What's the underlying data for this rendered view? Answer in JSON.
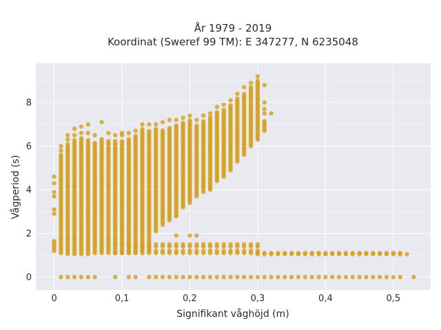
{
  "chart_data": {
    "type": "scatter",
    "title_line1": "År 1979 - 2019",
    "title_line2": "Koordinat (Sweref 99 TM): E 347277, N 6235048",
    "xlabel": "Signifikant våghöjd (m)",
    "ylabel": "Vågperiod (s)",
    "xlim": [
      -0.027,
      0.555
    ],
    "ylim": [
      -0.6,
      9.8
    ],
    "x_ticks": [
      {
        "value": 0,
        "label": "0"
      },
      {
        "value": 0.1,
        "label": "0,1"
      },
      {
        "value": 0.2,
        "label": "0,2"
      },
      {
        "value": 0.3,
        "label": "0,3"
      },
      {
        "value": 0.4,
        "label": "0,4"
      },
      {
        "value": 0.5,
        "label": "0,5"
      }
    ],
    "y_ticks": [
      {
        "value": 0,
        "label": "0"
      },
      {
        "value": 2,
        "label": "2"
      },
      {
        "value": 4,
        "label": "4"
      },
      {
        "value": 6,
        "label": "6"
      },
      {
        "value": 8,
        "label": "8"
      }
    ],
    "grid": true,
    "background": "#e9e9f0",
    "point_color": "#d4a11f",
    "x_step": 0.01,
    "main_band": [
      {
        "x": 0.0,
        "ymin": 1.2,
        "ymax": 1.7,
        "extra": [
          2.9,
          3.1,
          3.7,
          3.9,
          4.3,
          4.6
        ]
      },
      {
        "x": 0.01,
        "ymin": 1.1,
        "ymax": 5.6,
        "extra": [
          5.8,
          6.0
        ]
      },
      {
        "x": 0.02,
        "ymin": 1.05,
        "ymax": 6.1,
        "extra": [
          6.3,
          6.5
        ]
      },
      {
        "x": 0.03,
        "ymin": 1.05,
        "ymax": 6.3,
        "extra": [
          6.5,
          6.8
        ]
      },
      {
        "x": 0.04,
        "ymin": 1.05,
        "ymax": 6.4,
        "extra": [
          6.6,
          6.9
        ]
      },
      {
        "x": 0.05,
        "ymin": 1.05,
        "ymax": 6.3,
        "extra": [
          6.6,
          7.0
        ]
      },
      {
        "x": 0.06,
        "ymin": 1.1,
        "ymax": 6.2,
        "extra": [
          6.5
        ]
      },
      {
        "x": 0.07,
        "ymin": 1.1,
        "ymax": 6.4,
        "extra": [
          7.1
        ]
      },
      {
        "x": 0.08,
        "ymin": 1.1,
        "ymax": 6.3,
        "extra": [
          6.6
        ]
      },
      {
        "x": 0.09,
        "ymin": 1.1,
        "ymax": 6.3,
        "extra": [
          6.5
        ]
      },
      {
        "x": 0.1,
        "ymin": 1.1,
        "ymax": 6.3,
        "extra": [
          6.5,
          6.6
        ]
      },
      {
        "x": 0.11,
        "ymin": 1.1,
        "ymax": 6.4,
        "extra": [
          6.6
        ]
      },
      {
        "x": 0.12,
        "ymin": 1.15,
        "ymax": 6.5,
        "extra": [
          6.7
        ]
      },
      {
        "x": 0.13,
        "ymin": 1.2,
        "ymax": 6.8,
        "extra": [
          7.0
        ]
      },
      {
        "x": 0.14,
        "ymin": 1.2,
        "ymax": 6.7,
        "extra": [
          7.0
        ]
      },
      {
        "x": 0.15,
        "ymin": 2.1,
        "ymax": 6.8,
        "extra": [
          7.0
        ]
      },
      {
        "x": 0.16,
        "ymin": 2.4,
        "ymax": 6.8,
        "extra": [
          7.1
        ]
      },
      {
        "x": 0.17,
        "ymin": 2.6,
        "ymax": 6.9,
        "extra": [
          7.2
        ]
      },
      {
        "x": 0.18,
        "ymin": 2.8,
        "ymax": 7.0,
        "extra": [
          7.2,
          2.8
        ]
      },
      {
        "x": 0.19,
        "ymin": 3.2,
        "ymax": 7.1,
        "extra": [
          7.3
        ]
      },
      {
        "x": 0.2,
        "ymin": 3.4,
        "ymax": 7.2,
        "extra": [
          7.4
        ]
      },
      {
        "x": 0.21,
        "ymin": 3.7,
        "ymax": 7.0,
        "extra": [
          7.2
        ]
      },
      {
        "x": 0.22,
        "ymin": 3.9,
        "ymax": 7.2,
        "extra": [
          7.4
        ]
      },
      {
        "x": 0.23,
        "ymin": 4.0,
        "ymax": 7.4,
        "extra": [
          7.5
        ]
      },
      {
        "x": 0.24,
        "ymin": 4.4,
        "ymax": 7.6,
        "extra": [
          7.8
        ]
      },
      {
        "x": 0.25,
        "ymin": 4.6,
        "ymax": 7.7,
        "extra": [
          7.9
        ]
      },
      {
        "x": 0.26,
        "ymin": 4.9,
        "ymax": 7.9,
        "extra": [
          8.1
        ]
      },
      {
        "x": 0.27,
        "ymin": 5.3,
        "ymax": 8.2,
        "extra": [
          8.4
        ]
      },
      {
        "x": 0.28,
        "ymin": 5.6,
        "ymax": 8.4,
        "extra": [
          8.7
        ]
      },
      {
        "x": 0.29,
        "ymin": 6.0,
        "ymax": 8.7,
        "extra": [
          8.9
        ]
      },
      {
        "x": 0.3,
        "ymin": 6.3,
        "ymax": 9.0,
        "extra": [
          9.2
        ]
      },
      {
        "x": 0.31,
        "ymin": 6.7,
        "ymax": 7.2,
        "extra": [
          7.7,
          8.8,
          8.0,
          7.5
        ]
      },
      {
        "x": 0.32,
        "ymin": 7.5,
        "ymax": 7.5,
        "extra": []
      }
    ],
    "low_bands": [
      {
        "y": 1.5,
        "xmin": 0.09,
        "xmax": 0.3
      },
      {
        "y": 1.4,
        "xmin": 0.11,
        "xmax": 0.3
      },
      {
        "y": 1.2,
        "xmin": 0.11,
        "xmax": 0.3
      },
      {
        "y": 1.1,
        "xmin": 0.09,
        "xmax": 0.51
      },
      {
        "y": 1.05,
        "xmin": 0.3,
        "xmax": 0.52
      },
      {
        "y": 1.9,
        "xmin": 0.18,
        "xmax": 0.18
      },
      {
        "y": 1.9,
        "xmin": 0.2,
        "xmax": 0.21
      }
    ],
    "zero_points": [
      0.01,
      0.02,
      0.03,
      0.04,
      0.05,
      0.06,
      0.09,
      0.11,
      0.12,
      0.14,
      0.15,
      0.16,
      0.17,
      0.18,
      0.19,
      0.2,
      0.21,
      0.22,
      0.23,
      0.24,
      0.25,
      0.26,
      0.27,
      0.28,
      0.29,
      0.3,
      0.31,
      0.32,
      0.33,
      0.34,
      0.35,
      0.36,
      0.37,
      0.38,
      0.39,
      0.4,
      0.41,
      0.42,
      0.43,
      0.44,
      0.45,
      0.46,
      0.47,
      0.48,
      0.49,
      0.5,
      0.51,
      0.53
    ]
  }
}
